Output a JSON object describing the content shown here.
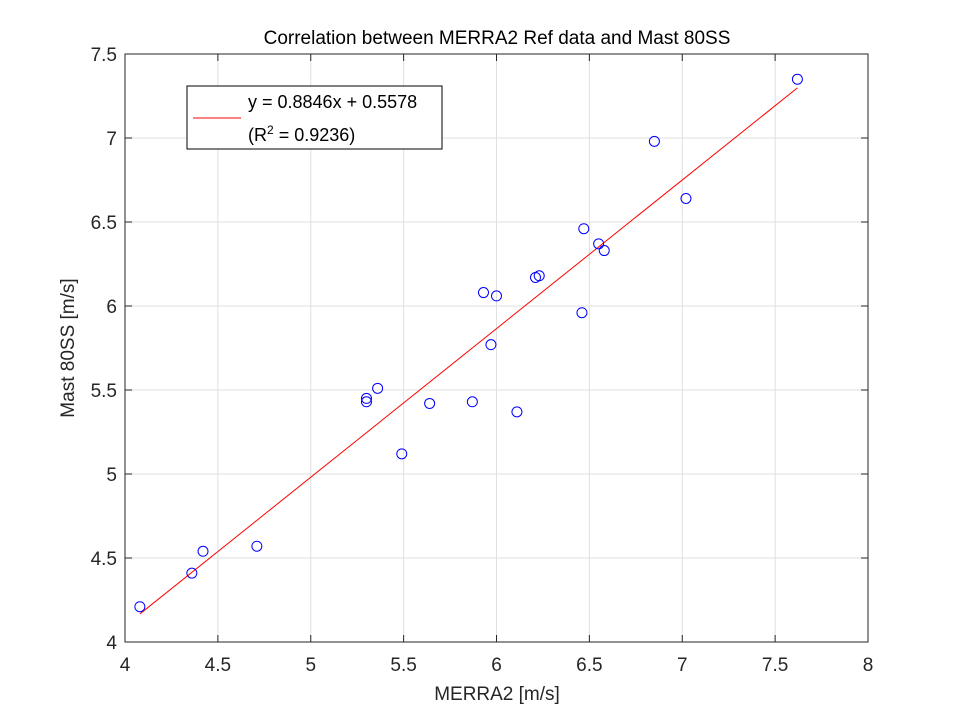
{
  "chart_data": {
    "type": "scatter",
    "title": "Correlation between MERRA2 Ref data and Mast 80SS",
    "xlabel": "MERRA2 [m/s]",
    "ylabel": "Mast 80SS [m/s]",
    "xlim": [
      4,
      8
    ],
    "ylim": [
      4,
      7.5
    ],
    "xticks": [
      "4",
      "4.5",
      "5",
      "5.5",
      "6",
      "6.5",
      "7",
      "7.5",
      "8"
    ],
    "yticks": [
      "4",
      "4.5",
      "5",
      "5.5",
      "6",
      "6.5",
      "7",
      "7.5"
    ],
    "grid": true,
    "legend_placement": "top-left",
    "colors": {
      "points": "#0000ff",
      "fit_line": "#ff0000",
      "grid": "#dfdfdf",
      "axes": "#262626"
    },
    "points": [
      {
        "x": 4.08,
        "y": 4.21
      },
      {
        "x": 4.36,
        "y": 4.41
      },
      {
        "x": 4.42,
        "y": 4.54
      },
      {
        "x": 4.71,
        "y": 4.57
      },
      {
        "x": 5.3,
        "y": 5.45
      },
      {
        "x": 5.3,
        "y": 5.43
      },
      {
        "x": 5.36,
        "y": 5.51
      },
      {
        "x": 5.49,
        "y": 5.12
      },
      {
        "x": 5.64,
        "y": 5.42
      },
      {
        "x": 5.87,
        "y": 5.43
      },
      {
        "x": 5.93,
        "y": 6.08
      },
      {
        "x": 5.97,
        "y": 5.77
      },
      {
        "x": 6.0,
        "y": 6.06
      },
      {
        "x": 6.11,
        "y": 5.37
      },
      {
        "x": 6.21,
        "y": 6.17
      },
      {
        "x": 6.23,
        "y": 6.18
      },
      {
        "x": 6.46,
        "y": 5.96
      },
      {
        "x": 6.47,
        "y": 6.46
      },
      {
        "x": 6.55,
        "y": 6.37
      },
      {
        "x": 6.58,
        "y": 6.33
      },
      {
        "x": 6.85,
        "y": 6.98
      },
      {
        "x": 7.02,
        "y": 6.64
      },
      {
        "x": 7.62,
        "y": 7.35
      }
    ],
    "fit": {
      "slope": 0.8846,
      "intercept": 0.5578,
      "x_range": [
        4.08,
        7.62
      ]
    },
    "legend": {
      "line1": "y = 0.8846x + 0.5578",
      "line2_prefix": "(R",
      "line2_sup": "2",
      "line2_suffix": " = 0.9236)"
    }
  }
}
